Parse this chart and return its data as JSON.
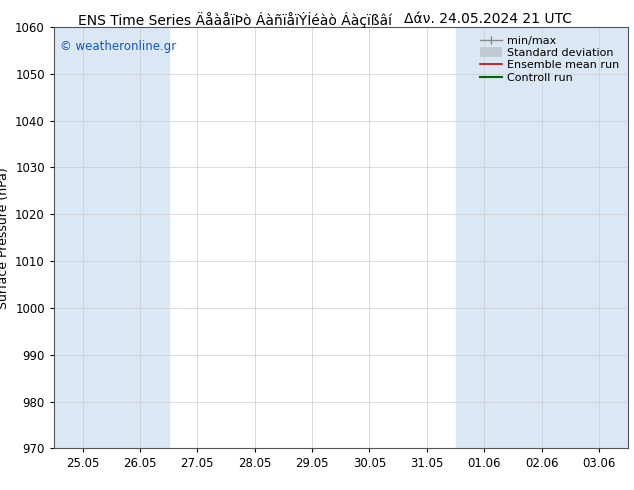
{
  "title_left": "ENS Time Series ÄåàåïÞò ÁàñïåïÝÍéàò Áàçïßâí",
  "title_right": "Δάν. 24.05.2024 21 UTC",
  "ylabel": "Surface Pressure (hPa)",
  "ylim": [
    970,
    1060
  ],
  "yticks": [
    970,
    980,
    990,
    1000,
    1010,
    1020,
    1030,
    1040,
    1050,
    1060
  ],
  "x_labels": [
    "25.05",
    "26.05",
    "27.05",
    "28.05",
    "29.05",
    "30.05",
    "31.05",
    "01.06",
    "02.06",
    "03.06"
  ],
  "shaded_columns": [
    0,
    1,
    7,
    8,
    9
  ],
  "bg_color": "#ffffff",
  "shade_color": "#dae8f5",
  "plot_bg": "#ffffff",
  "watermark": "© weatheronline.gr",
  "watermark_color": "#1155cc",
  "title_color": "#000000",
  "title_fontsize": 10,
  "axis_label_fontsize": 9,
  "tick_fontsize": 8.5,
  "legend_fontsize": 8
}
